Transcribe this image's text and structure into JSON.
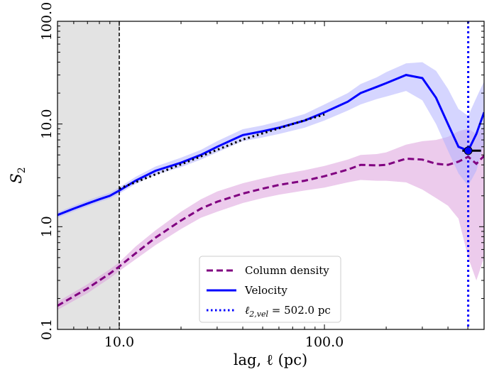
{
  "chart_data": {
    "type": "line",
    "x_scale": "log",
    "y_scale": "log",
    "xlabel": "lag, ℓ (pc)",
    "ylabel": "S",
    "ylabel_sub": "2",
    "xlim": [
      5,
      600
    ],
    "ylim": [
      0.1,
      100
    ],
    "x_ticks": [
      {
        "value": 10,
        "label": "10.0"
      },
      {
        "value": 100,
        "label": "100.0"
      }
    ],
    "y_ticks": [
      {
        "value": 0.1,
        "label": "0.1"
      },
      {
        "value": 1,
        "label": "1.0"
      },
      {
        "value": 10,
        "label": "10.0"
      },
      {
        "value": 100,
        "label": "100.0"
      }
    ],
    "shaded_region": {
      "x0": 5,
      "x1": 10,
      "color": "#e3e3e3"
    },
    "vertical_lines": [
      {
        "x": 10,
        "color": "#000000",
        "style": "dashed"
      },
      {
        "x": 502,
        "color": "#0000ff",
        "style": "dotted"
      }
    ],
    "series": [
      {
        "name": "Column density",
        "color": "#800080",
        "style": "dashed",
        "band_color": "#dda0dd",
        "x": [
          5,
          6,
          7,
          8,
          9,
          10,
          12,
          15,
          20,
          25,
          30,
          40,
          50,
          60,
          80,
          100,
          130,
          150,
          180,
          200,
          250,
          300,
          350,
          400,
          450,
          502,
          550,
          600
        ],
        "y": [
          0.17,
          0.21,
          0.25,
          0.3,
          0.35,
          0.41,
          0.55,
          0.78,
          1.15,
          1.5,
          1.75,
          2.1,
          2.35,
          2.55,
          2.8,
          3.1,
          3.6,
          4.0,
          3.95,
          4.0,
          4.6,
          4.5,
          4.1,
          4.0,
          4.3,
          4.8,
          4.1,
          4.9
        ],
        "lower": [
          0.155,
          0.19,
          0.225,
          0.27,
          0.315,
          0.37,
          0.48,
          0.66,
          0.95,
          1.22,
          1.4,
          1.7,
          1.9,
          2.05,
          2.25,
          2.4,
          2.7,
          2.85,
          2.8,
          2.8,
          2.7,
          2.3,
          1.9,
          1.6,
          1.2,
          0.5,
          0.3,
          0.5
        ],
        "upper": [
          0.185,
          0.23,
          0.275,
          0.33,
          0.385,
          0.45,
          0.64,
          0.92,
          1.4,
          1.85,
          2.2,
          2.65,
          2.95,
          3.2,
          3.55,
          3.9,
          4.5,
          5.0,
          5.1,
          5.3,
          6.3,
          6.8,
          7.0,
          7.5,
          8.5,
          9.0,
          8.0,
          9.5
        ]
      },
      {
        "name": "Velocity",
        "color": "#0000ff",
        "style": "solid",
        "band_color": "#b3b3ff",
        "x": [
          5,
          6,
          7,
          8,
          9,
          10,
          12,
          15,
          20,
          25,
          30,
          40,
          50,
          60,
          80,
          100,
          130,
          150,
          180,
          200,
          250,
          300,
          350,
          400,
          450,
          502,
          550,
          600
        ],
        "y": [
          1.3,
          1.5,
          1.68,
          1.85,
          2.0,
          2.25,
          2.8,
          3.5,
          4.2,
          5.0,
          6.0,
          7.8,
          8.5,
          9.2,
          10.8,
          13.0,
          16.5,
          20.0,
          23.0,
          25.0,
          30.0,
          28.0,
          18.0,
          10.0,
          6.0,
          5.5,
          8.0,
          13.0
        ],
        "lower": [
          1.22,
          1.41,
          1.58,
          1.74,
          1.88,
          2.1,
          2.6,
          3.2,
          3.8,
          4.5,
          5.3,
          6.8,
          7.4,
          8.0,
          9.2,
          10.8,
          13.5,
          15.5,
          17.5,
          18.5,
          21.0,
          17.0,
          10.0,
          5.5,
          3.3,
          2.5,
          3.5,
          6.5
        ],
        "upper": [
          1.38,
          1.6,
          1.8,
          1.98,
          2.14,
          2.42,
          3.05,
          3.85,
          4.7,
          5.6,
          6.8,
          8.9,
          9.7,
          10.6,
          12.5,
          15.5,
          20.0,
          24.5,
          28.5,
          32.0,
          39.0,
          40.0,
          33.0,
          22.0,
          14.0,
          12.0,
          18.0,
          26.0
        ]
      }
    ],
    "fit_line": {
      "color": "#000000",
      "style": "dotted",
      "x": [
        10,
        20,
        40,
        70,
        100
      ],
      "y": [
        2.35,
        4.05,
        7.05,
        10.0,
        12.4
      ]
    },
    "marker": {
      "x": 502,
      "y": 5.5,
      "xerr": [
        470,
        580
      ],
      "color": "#0000ff"
    },
    "legend": {
      "placement": "lower-center",
      "entries": [
        {
          "label": "Column density",
          "color": "#800080",
          "style": "dashed"
        },
        {
          "label": "Velocity",
          "color": "#0000ff",
          "style": "solid"
        },
        {
          "label_prefix": "ℓ",
          "label_sub": "2,vel",
          "label_suffix": " = 502.0 pc",
          "color": "#0000ff",
          "style": "dotted"
        }
      ]
    }
  }
}
